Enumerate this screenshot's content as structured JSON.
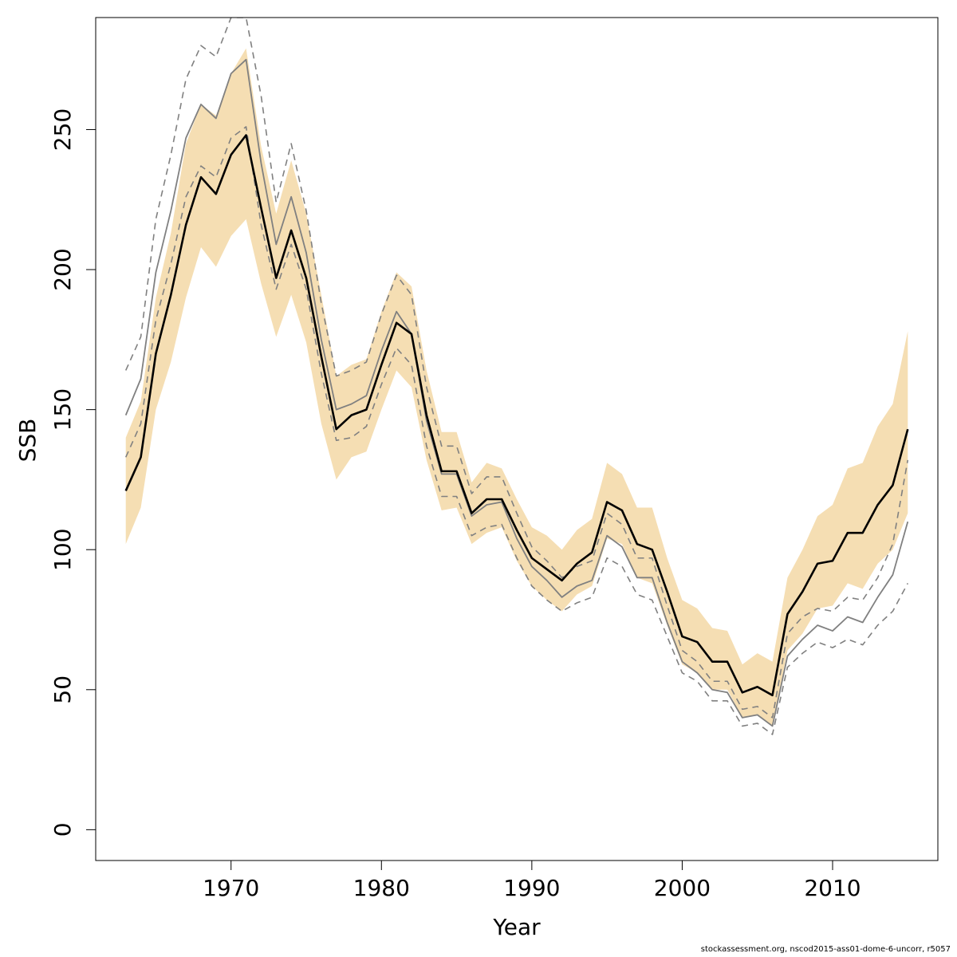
{
  "chart_data": {
    "type": "line",
    "xlabel": "Year",
    "ylabel": "SSB",
    "xlim": [
      1961,
      2017
    ],
    "ylim": [
      -11,
      290
    ],
    "xticks": [
      1970,
      1980,
      1990,
      2000,
      2010
    ],
    "yticks": [
      0,
      50,
      100,
      150,
      200,
      250
    ],
    "band_color": "#f5deb3",
    "main_color": "#000000",
    "alt_color": "#808080",
    "years": [
      1963,
      1964,
      1965,
      1966,
      1967,
      1968,
      1969,
      1970,
      1971,
      1972,
      1973,
      1974,
      1975,
      1976,
      1977,
      1978,
      1979,
      1980,
      1981,
      1982,
      1983,
      1984,
      1985,
      1986,
      1987,
      1988,
      1989,
      1990,
      1991,
      1992,
      1993,
      1994,
      1995,
      1996,
      1997,
      1998,
      1999,
      2000,
      2001,
      2002,
      2003,
      2004,
      2005,
      2006,
      2007,
      2008,
      2009,
      2010,
      2011,
      2012,
      2013,
      2014,
      2015
    ],
    "series": [
      {
        "role": "estimate",
        "values": [
          121,
          133,
          170,
          191,
          216,
          233,
          227,
          241,
          248,
          222,
          197,
          214,
          197,
          169,
          143,
          148,
          150,
          166,
          181,
          177,
          148,
          128,
          128,
          113,
          118,
          118,
          107,
          97,
          93,
          89,
          95,
          99,
          117,
          114,
          102,
          100,
          85,
          69,
          67,
          60,
          60,
          49,
          51,
          48,
          77,
          85,
          95,
          96,
          106,
          106,
          116,
          123,
          143
        ]
      },
      {
        "role": "band-lower",
        "values": [
          102,
          115,
          150,
          167,
          190,
          208,
          201,
          212,
          218,
          195,
          176,
          191,
          174,
          145,
          125,
          133,
          135,
          150,
          164,
          158,
          132,
          114,
          115,
          102,
          106,
          108,
          96,
          87,
          82,
          78,
          84,
          87,
          104,
          102,
          90,
          88,
          73,
          59,
          56,
          50,
          50,
          40,
          41,
          37,
          64,
          70,
          79,
          80,
          88,
          86,
          95,
          100,
          113
        ]
      },
      {
        "role": "band-upper",
        "values": [
          140,
          153,
          190,
          213,
          245,
          259,
          255,
          270,
          279,
          244,
          220,
          239,
          220,
          191,
          162,
          166,
          168,
          185,
          199,
          194,
          164,
          142,
          142,
          124,
          131,
          129,
          118,
          108,
          105,
          100,
          107,
          111,
          131,
          127,
          115,
          115,
          97,
          82,
          79,
          72,
          71,
          59,
          63,
          60,
          90,
          100,
          112,
          116,
          129,
          131,
          144,
          152,
          178
        ]
      },
      {
        "role": "alt-estimate",
        "values": [
          148,
          161,
          199,
          221,
          247,
          259,
          254,
          270,
          275,
          238,
          209,
          226,
          206,
          175,
          150,
          152,
          155,
          171,
          185,
          177,
          146,
          127,
          127,
          112,
          116,
          117,
          104,
          94,
          89,
          83,
          87,
          89,
          105,
          101,
          90,
          90,
          74,
          60,
          56,
          50,
          49,
          40,
          41,
          37,
          62,
          68,
          73,
          71,
          76,
          74,
          83,
          91,
          110
        ]
      },
      {
        "role": "alt-lower",
        "values": [
          164,
          176,
          218,
          241,
          268,
          280,
          276,
          290,
          290,
          262,
          224,
          245,
          221,
          188,
          162,
          164,
          167,
          184,
          198,
          191,
          158,
          137,
          137,
          120,
          126,
          126,
          113,
          101,
          96,
          90,
          94,
          96,
          113,
          109,
          97,
          97,
          80,
          64,
          60,
          53,
          53,
          43,
          44,
          40,
          70,
          76,
          79,
          78,
          83,
          82,
          90,
          102,
          132
        ]
      },
      {
        "role": "alt-upper",
        "values": [
          133,
          145,
          182,
          202,
          226,
          237,
          233,
          247,
          251,
          216,
          193,
          209,
          193,
          163,
          139,
          140,
          144,
          159,
          172,
          166,
          137,
          119,
          119,
          105,
          108,
          109,
          97,
          87,
          82,
          78,
          81,
          83,
          97,
          94,
          84,
          82,
          69,
          56,
          53,
          46,
          46,
          37,
          38,
          34,
          58,
          63,
          67,
          65,
          68,
          66,
          73,
          78,
          88
        ]
      }
    ]
  },
  "footer": {
    "source_text": "stockassessment.org, nscod2015-ass01-dome-6-uncorr, r5057"
  }
}
